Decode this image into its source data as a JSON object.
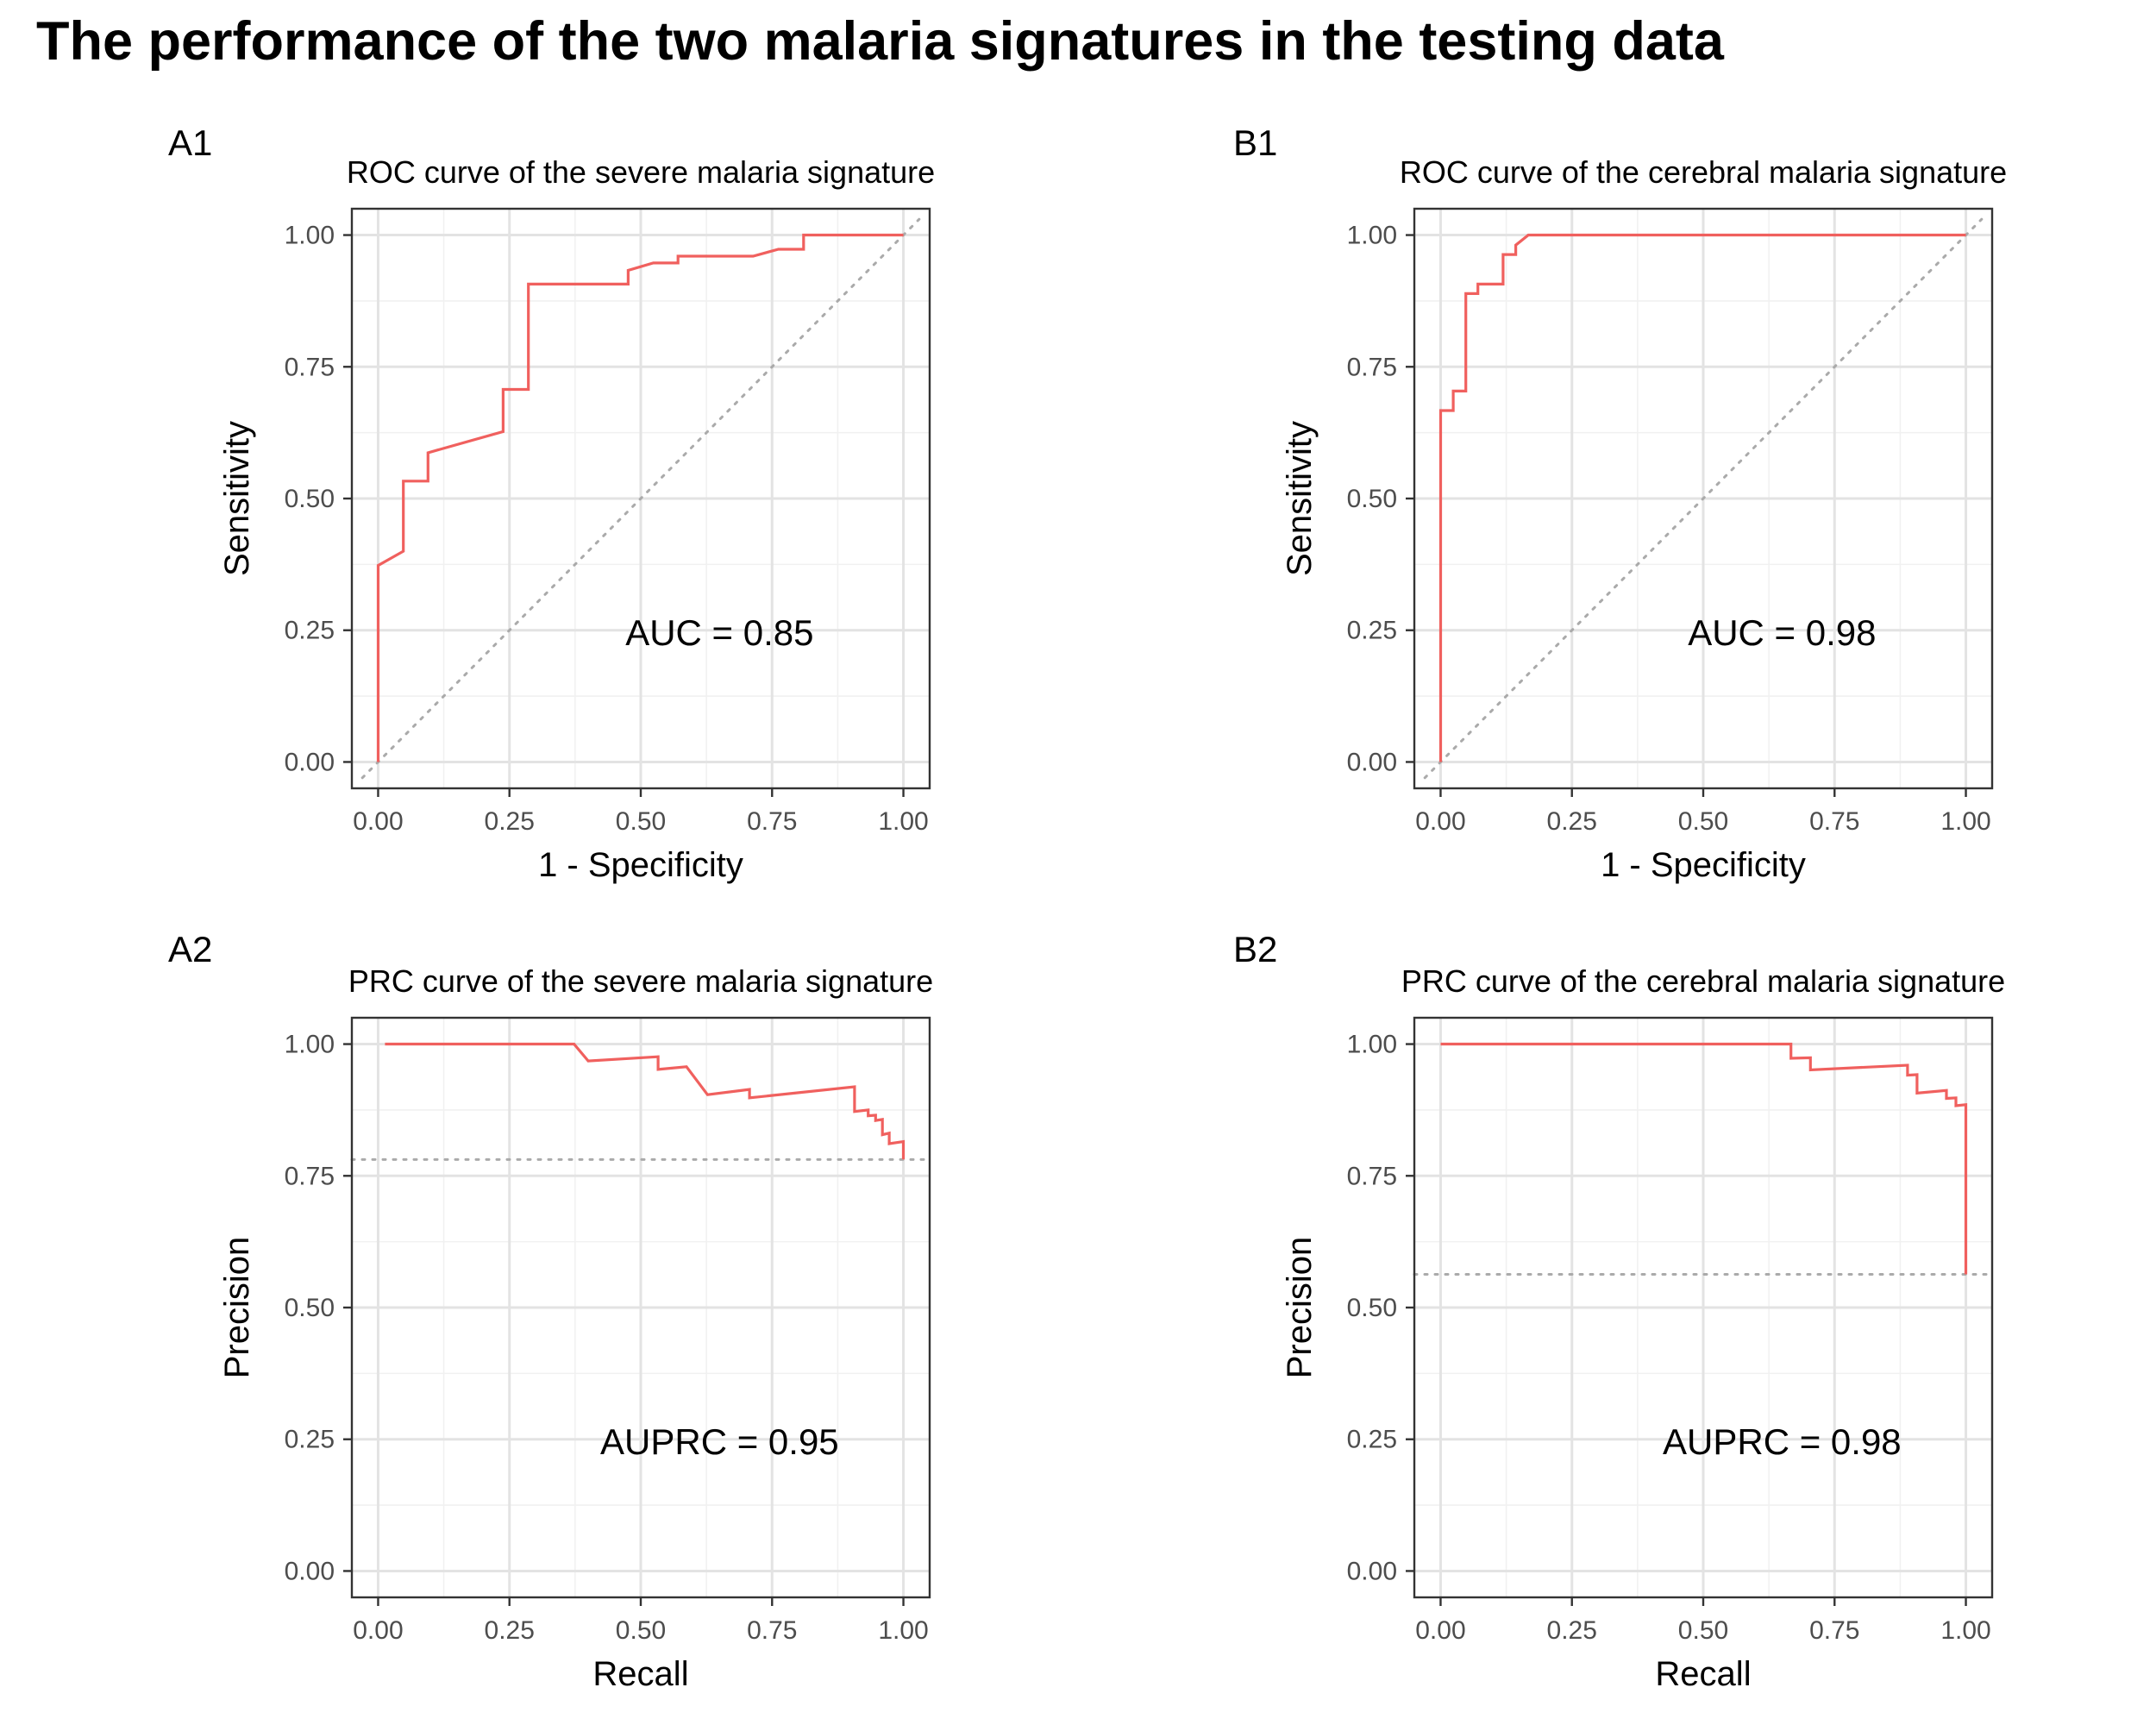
{
  "figure_title": "The performance of the two malaria signatures in the testing data",
  "colors": {
    "curve": "#F0605E",
    "reference": "#AAAAAA",
    "grid_major": "#E3E3E3",
    "grid_minor": "#F1F1F1",
    "frame": "#333333",
    "tick_text": "#4D4D4D"
  },
  "chart_data": [
    {
      "panel_tag": "A1",
      "type": "line",
      "title": "ROC curve of the severe malaria signature",
      "xlabel": "1 - Specificity",
      "ylabel": "Sensitivity",
      "xlim": [
        -0.05,
        1.05
      ],
      "ylim": [
        -0.05,
        1.05
      ],
      "ticks": [
        0,
        0.25,
        0.5,
        0.75,
        1
      ],
      "tick_labels": [
        "0.00",
        "0.25",
        "0.50",
        "0.75",
        "1.00"
      ],
      "grid": true,
      "annotation": {
        "text": "AUC = 0.85",
        "x": 0.65,
        "y": 0.24
      },
      "reference_line": "diagonal",
      "x": [
        0,
        0,
        0.048,
        0.048,
        0.095,
        0.095,
        0.238,
        0.238,
        0.286,
        0.286,
        0.476,
        0.476,
        0.524,
        0.571,
        0.571,
        0.714,
        0.762,
        0.81,
        0.81,
        1
      ],
      "y": [
        0,
        0.373,
        0.4,
        0.533,
        0.533,
        0.587,
        0.627,
        0.707,
        0.707,
        0.907,
        0.907,
        0.933,
        0.947,
        0.947,
        0.96,
        0.96,
        0.973,
        0.973,
        1,
        1
      ]
    },
    {
      "panel_tag": "B1",
      "type": "line",
      "title": "ROC curve of the cerebral malaria signature",
      "xlabel": "1 - Specificity",
      "ylabel": "Sensitivity",
      "xlim": [
        -0.05,
        1.05
      ],
      "ylim": [
        -0.05,
        1.05
      ],
      "ticks": [
        0,
        0.25,
        0.5,
        0.75,
        1
      ],
      "tick_labels": [
        "0.00",
        "0.25",
        "0.50",
        "0.75",
        "1.00"
      ],
      "grid": true,
      "annotation": {
        "text": "AUC = 0.98",
        "x": 0.65,
        "y": 0.24
      },
      "reference_line": "diagonal",
      "x": [
        0,
        0,
        0.024,
        0.024,
        0.048,
        0.048,
        0.071,
        0.071,
        0.095,
        0.095,
        0.119,
        0.119,
        0.143,
        0.143,
        0.167,
        0.167,
        1
      ],
      "y": [
        0,
        0.667,
        0.667,
        0.704,
        0.704,
        0.889,
        0.889,
        0.907,
        0.907,
        0.907,
        0.907,
        0.963,
        0.963,
        0.981,
        1,
        1,
        1
      ]
    },
    {
      "panel_tag": "A2",
      "type": "line",
      "title": "PRC curve of the severe malaria signature",
      "xlabel": "Recall",
      "ylabel": "Precision",
      "xlim": [
        -0.05,
        1.05
      ],
      "ylim": [
        -0.05,
        1.05
      ],
      "ticks": [
        0,
        0.25,
        0.5,
        0.75,
        1
      ],
      "tick_labels": [
        "0.00",
        "0.25",
        "0.50",
        "0.75",
        "1.00"
      ],
      "grid": true,
      "annotation": {
        "text": "AUPRC = 0.95",
        "x": 0.65,
        "y": 0.24
      },
      "reference_line": "horizontal",
      "reference_value": 0.781,
      "x": [
        0.013,
        0.373,
        0.4,
        0.533,
        0.533,
        0.587,
        0.627,
        0.707,
        0.707,
        0.907,
        0.907,
        0.933,
        0.933,
        0.947,
        0.947,
        0.96,
        0.96,
        0.973,
        0.973,
        1,
        1
      ],
      "y": [
        1,
        1,
        0.968,
        0.976,
        0.952,
        0.957,
        0.904,
        0.914,
        0.898,
        0.919,
        0.872,
        0.875,
        0.864,
        0.865,
        0.855,
        0.857,
        0.828,
        0.831,
        0.811,
        0.815,
        0.781
      ]
    },
    {
      "panel_tag": "B2",
      "type": "line",
      "title": "PRC curve of the cerebral malaria signature",
      "xlabel": "Recall",
      "ylabel": "Precision",
      "xlim": [
        -0.05,
        1.05
      ],
      "ylim": [
        -0.05,
        1.05
      ],
      "ticks": [
        0,
        0.25,
        0.5,
        0.75,
        1
      ],
      "tick_labels": [
        "0.00",
        "0.25",
        "0.50",
        "0.75",
        "1.00"
      ],
      "grid": true,
      "annotation": {
        "text": "AUPRC = 0.98",
        "x": 0.65,
        "y": 0.24
      },
      "reference_line": "horizontal",
      "reference_value": 0.563,
      "x": [
        0,
        0.667,
        0.667,
        0.704,
        0.704,
        0.889,
        0.889,
        0.907,
        0.907,
        0.963,
        0.963,
        0.981,
        0.981,
        1,
        1
      ],
      "y": [
        1,
        1,
        0.973,
        0.974,
        0.951,
        0.96,
        0.941,
        0.942,
        0.907,
        0.912,
        0.897,
        0.898,
        0.883,
        0.885,
        0.563
      ]
    }
  ]
}
